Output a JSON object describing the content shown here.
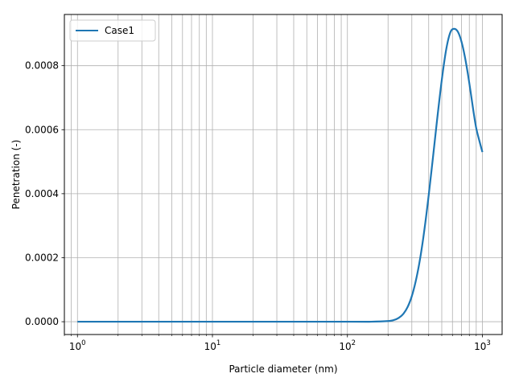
{
  "chart_data": {
    "type": "line",
    "title": "",
    "xlabel": "Particle diameter (nm)",
    "ylabel": "Penetration (-)",
    "xscale": "log",
    "xlim": [
      0.8,
      1400
    ],
    "ylim": [
      -4e-05,
      0.00096
    ],
    "grid": true,
    "grid_axis": "both, major and minor ticks on x",
    "legend": {
      "loc": "upper-left"
    },
    "x_ticks": [
      {
        "value": 1,
        "base": "10",
        "exp": "0"
      },
      {
        "value": 10,
        "base": "10",
        "exp": "1"
      },
      {
        "value": 100,
        "base": "10",
        "exp": "2"
      },
      {
        "value": 1000,
        "base": "10",
        "exp": "3"
      }
    ],
    "y_ticks": [
      {
        "value": 0,
        "label": "0.0000"
      },
      {
        "value": 0.0002,
        "label": "0.0002"
      },
      {
        "value": 0.0004,
        "label": "0.0004"
      },
      {
        "value": 0.0006,
        "label": "0.0006"
      },
      {
        "value": 0.0008,
        "label": "0.0008"
      }
    ],
    "series": [
      {
        "name": "Case1",
        "color": "#1f77b4",
        "x": [
          1,
          10,
          100,
          150,
          200,
          220,
          240,
          260,
          280,
          300,
          320,
          340,
          360,
          380,
          400,
          430,
          460,
          500,
          540,
          580,
          620,
          660,
          700,
          740,
          780,
          820,
          860,
          900,
          950,
          1000
        ],
        "y": [
          0,
          0,
          0,
          0,
          2e-06,
          5e-06,
          1.2e-05,
          2.5e-05,
          4.7e-05,
          8e-05,
          0.000125,
          0.00018,
          0.000245,
          0.000318,
          0.000395,
          0.000512,
          0.000625,
          0.000755,
          0.000852,
          0.000905,
          0.000915,
          0.000905,
          0.000875,
          0.00083,
          0.000775,
          0.000715,
          0.000655,
          0.000605,
          0.000565,
          0.00053
        ]
      }
    ]
  }
}
